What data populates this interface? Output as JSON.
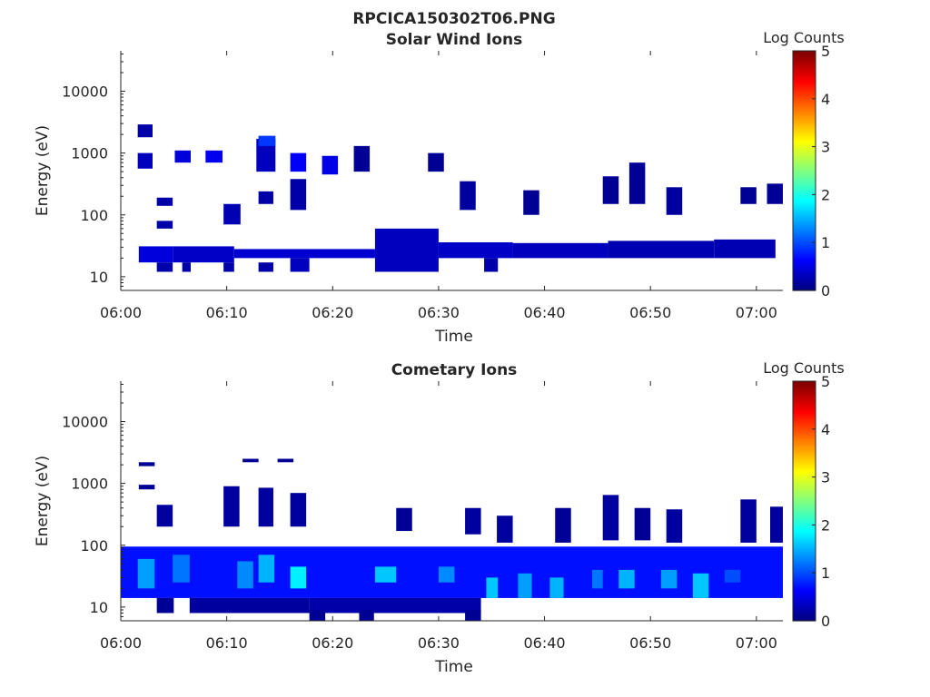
{
  "figure_title": "RPCICA150302T06.PNG",
  "colorbar": {
    "label": "Log Counts",
    "ticks": [
      "0",
      "1",
      "2",
      "3",
      "4",
      "5"
    ],
    "range": [
      0,
      5
    ],
    "colormap": "jet"
  },
  "x_axis": {
    "label": "Time",
    "ticks": [
      "06:00",
      "06:10",
      "06:20",
      "06:30",
      "06:40",
      "06:50",
      "07:00"
    ],
    "tick_minutes": [
      0,
      10,
      20,
      30,
      40,
      50,
      60
    ],
    "range_minutes": [
      0,
      62.5
    ]
  },
  "y_axis": {
    "label": "Energy (eV)",
    "ticks": [
      "10",
      "100",
      "1000",
      "10000"
    ],
    "tick_values": [
      10,
      100,
      1000,
      10000
    ],
    "scale": "log",
    "range": [
      6,
      45000
    ]
  },
  "chart_data": [
    {
      "type": "heatmap",
      "title": "Solar Wind Ions",
      "xlabel": "Time",
      "ylabel": "Energy (eV)",
      "cbar_label": "Log Counts",
      "yscale": "log",
      "xlim": [
        "06:00",
        "07:02"
      ],
      "ylim": [
        6,
        45000
      ],
      "clim": [
        0,
        5
      ],
      "cells": [
        {
          "t0": 1.7,
          "t1": 4.9,
          "e0": 17,
          "e1": 31,
          "v": 0.45
        },
        {
          "t0": 3.4,
          "t1": 4.9,
          "e0": 12,
          "e1": 17,
          "v": 0.2
        },
        {
          "t0": 4.9,
          "t1": 10.7,
          "e0": 17,
          "e1": 31,
          "v": 0.35
        },
        {
          "t0": 5.8,
          "t1": 6.6,
          "e0": 12,
          "e1": 17,
          "v": 0.2
        },
        {
          "t0": 9.7,
          "t1": 10.7,
          "e0": 12,
          "e1": 17,
          "v": 0.2
        },
        {
          "t0": 10.7,
          "t1": 24.0,
          "e0": 20,
          "e1": 28,
          "v": 0.4
        },
        {
          "t0": 13.0,
          "t1": 14.4,
          "e0": 12,
          "e1": 17,
          "v": 0.2
        },
        {
          "t0": 16.0,
          "t1": 17.8,
          "e0": 12,
          "e1": 20,
          "v": 0.3
        },
        {
          "t0": 24.0,
          "t1": 30.0,
          "e0": 12,
          "e1": 60,
          "v": 0.3
        },
        {
          "t0": 30.0,
          "t1": 37.0,
          "e0": 20,
          "e1": 36,
          "v": 0.35
        },
        {
          "t0": 34.3,
          "t1": 35.6,
          "e0": 12,
          "e1": 20,
          "v": 0.2
        },
        {
          "t0": 37.0,
          "t1": 46.0,
          "e0": 20,
          "e1": 35,
          "v": 0.3
        },
        {
          "t0": 46.0,
          "t1": 56.0,
          "e0": 20,
          "e1": 38,
          "v": 0.25
        },
        {
          "t0": 56.0,
          "t1": 61.8,
          "e0": 20,
          "e1": 40,
          "v": 0.25
        },
        {
          "t0": 3.4,
          "t1": 4.9,
          "e0": 60,
          "e1": 80,
          "v": 0.2
        },
        {
          "t0": 3.4,
          "t1": 4.9,
          "e0": 140,
          "e1": 190,
          "v": 0.2
        },
        {
          "t0": 9.7,
          "t1": 11.3,
          "e0": 70,
          "e1": 150,
          "v": 0.25
        },
        {
          "t0": 13.0,
          "t1": 14.4,
          "e0": 150,
          "e1": 240,
          "v": 0.2
        },
        {
          "t0": 12.8,
          "t1": 14.6,
          "e0": 500,
          "e1": 1700,
          "v": 0.3
        },
        {
          "t0": 13.0,
          "t1": 14.6,
          "e0": 1300,
          "e1": 1900,
          "v": 0.9
        },
        {
          "t0": 16.0,
          "t1": 17.5,
          "e0": 500,
          "e1": 1000,
          "v": 0.6
        },
        {
          "t0": 16.0,
          "t1": 17.5,
          "e0": 120,
          "e1": 380,
          "v": 0.2
        },
        {
          "t0": 19.0,
          "t1": 20.5,
          "e0": 450,
          "e1": 900,
          "v": 0.5
        },
        {
          "t0": 1.6,
          "t1": 3.0,
          "e0": 1800,
          "e1": 2900,
          "v": 0.2
        },
        {
          "t0": 1.6,
          "t1": 3.0,
          "e0": 560,
          "e1": 1000,
          "v": 0.3
        },
        {
          "t0": 5.1,
          "t1": 6.6,
          "e0": 700,
          "e1": 1100,
          "v": 0.45
        },
        {
          "t0": 8.0,
          "t1": 9.6,
          "e0": 700,
          "e1": 1100,
          "v": 0.55
        },
        {
          "t0": 22.0,
          "t1": 23.5,
          "e0": 500,
          "e1": 1300,
          "v": 0.1
        },
        {
          "t0": 29.0,
          "t1": 30.5,
          "e0": 500,
          "e1": 1000,
          "v": 0.1
        },
        {
          "t0": 32.0,
          "t1": 33.5,
          "e0": 120,
          "e1": 350,
          "v": 0.15
        },
        {
          "t0": 38.0,
          "t1": 39.5,
          "e0": 100,
          "e1": 250,
          "v": 0.1
        },
        {
          "t0": 45.5,
          "t1": 47.0,
          "e0": 150,
          "e1": 420,
          "v": 0.1
        },
        {
          "t0": 48.0,
          "t1": 49.5,
          "e0": 150,
          "e1": 700,
          "v": 0.1
        },
        {
          "t0": 51.5,
          "t1": 53.0,
          "e0": 100,
          "e1": 280,
          "v": 0.15
        },
        {
          "t0": 58.5,
          "t1": 60.0,
          "e0": 150,
          "e1": 280,
          "v": 0.1
        },
        {
          "t0": 61.0,
          "t1": 62.5,
          "e0": 150,
          "e1": 320,
          "v": 0.1
        }
      ]
    },
    {
      "type": "heatmap",
      "title": "Cometary Ions",
      "xlabel": "Time",
      "ylabel": "Energy (eV)",
      "cbar_label": "Log Counts",
      "yscale": "log",
      "xlim": [
        "06:00",
        "07:02"
      ],
      "ylim": [
        6,
        45000
      ],
      "clim": [
        0,
        5
      ],
      "cells": [
        {
          "t0": -0.8,
          "t1": 62.5,
          "e0": 14,
          "e1": 95,
          "v": 0.7
        },
        {
          "t0": 3.4,
          "t1": 5.0,
          "e0": 8,
          "e1": 14,
          "v": 0.1
        },
        {
          "t0": 6.5,
          "t1": 17.8,
          "e0": 8,
          "e1": 14,
          "v": 0.15
        },
        {
          "t0": 17.8,
          "t1": 34.0,
          "e0": 8,
          "e1": 14,
          "v": 0.2
        },
        {
          "t0": 17.8,
          "t1": 19.3,
          "e0": 6,
          "e1": 9,
          "v": 0.1
        },
        {
          "t0": 22.5,
          "t1": 23.9,
          "e0": 6,
          "e1": 9,
          "v": 0.1
        },
        {
          "t0": 32.5,
          "t1": 34.0,
          "e0": 6,
          "e1": 9,
          "v": 0.1
        },
        {
          "t0": 1.6,
          "t1": 3.2,
          "e0": 20,
          "e1": 60,
          "v": 1.4
        },
        {
          "t0": 4.9,
          "t1": 6.5,
          "e0": 25,
          "e1": 70,
          "v": 1.2
        },
        {
          "t0": 11.0,
          "t1": 12.5,
          "e0": 20,
          "e1": 55,
          "v": 1.3
        },
        {
          "t0": 13.0,
          "t1": 14.5,
          "e0": 25,
          "e1": 70,
          "v": 1.5
        },
        {
          "t0": 16.0,
          "t1": 17.5,
          "e0": 20,
          "e1": 45,
          "v": 1.8
        },
        {
          "t0": 24.0,
          "t1": 26.0,
          "e0": 25,
          "e1": 45,
          "v": 1.6
        },
        {
          "t0": 30.0,
          "t1": 31.5,
          "e0": 25,
          "e1": 45,
          "v": 1.3
        },
        {
          "t0": 34.5,
          "t1": 35.6,
          "e0": 14,
          "e1": 30,
          "v": 1.6
        },
        {
          "t0": 37.5,
          "t1": 38.8,
          "e0": 14,
          "e1": 35,
          "v": 1.4
        },
        {
          "t0": 40.5,
          "t1": 41.8,
          "e0": 14,
          "e1": 30,
          "v": 1.5
        },
        {
          "t0": 44.5,
          "t1": 45.5,
          "e0": 20,
          "e1": 40,
          "v": 1.2
        },
        {
          "t0": 47.0,
          "t1": 48.5,
          "e0": 20,
          "e1": 40,
          "v": 1.5
        },
        {
          "t0": 51.0,
          "t1": 52.5,
          "e0": 20,
          "e1": 40,
          "v": 1.4
        },
        {
          "t0": 54.0,
          "t1": 55.5,
          "e0": 14,
          "e1": 35,
          "v": 1.6
        },
        {
          "t0": 57.0,
          "t1": 58.5,
          "e0": 25,
          "e1": 40,
          "v": 1.0
        },
        {
          "t0": 1.7,
          "t1": 3.2,
          "e0": 1900,
          "e1": 2200,
          "v": 0.1
        },
        {
          "t0": 1.7,
          "t1": 3.2,
          "e0": 800,
          "e1": 950,
          "v": 0.1
        },
        {
          "t0": 3.4,
          "t1": 4.9,
          "e0": 200,
          "e1": 450,
          "v": 0.15
        },
        {
          "t0": 9.7,
          "t1": 11.2,
          "e0": 200,
          "e1": 900,
          "v": 0.15
        },
        {
          "t0": 13.0,
          "t1": 14.4,
          "e0": 200,
          "e1": 850,
          "v": 0.15
        },
        {
          "t0": 16.0,
          "t1": 17.5,
          "e0": 200,
          "e1": 700,
          "v": 0.15
        },
        {
          "t0": 11.5,
          "t1": 13.0,
          "e0": 2200,
          "e1": 2500,
          "v": 0.1
        },
        {
          "t0": 14.8,
          "t1": 16.3,
          "e0": 2200,
          "e1": 2500,
          "v": 0.1
        },
        {
          "t0": 26.0,
          "t1": 27.5,
          "e0": 170,
          "e1": 400,
          "v": 0.1
        },
        {
          "t0": 32.5,
          "t1": 34.0,
          "e0": 150,
          "e1": 400,
          "v": 0.15
        },
        {
          "t0": 35.5,
          "t1": 37.0,
          "e0": 110,
          "e1": 300,
          "v": 0.15
        },
        {
          "t0": 41.0,
          "t1": 42.5,
          "e0": 110,
          "e1": 400,
          "v": 0.1
        },
        {
          "t0": 45.5,
          "t1": 47.0,
          "e0": 120,
          "e1": 650,
          "v": 0.15
        },
        {
          "t0": 48.5,
          "t1": 50.0,
          "e0": 120,
          "e1": 400,
          "v": 0.1
        },
        {
          "t0": 51.5,
          "t1": 53.0,
          "e0": 110,
          "e1": 380,
          "v": 0.15
        },
        {
          "t0": 58.5,
          "t1": 60.0,
          "e0": 110,
          "e1": 550,
          "v": 0.15
        },
        {
          "t0": 61.3,
          "t1": 62.5,
          "e0": 110,
          "e1": 420,
          "v": 0.15
        }
      ]
    }
  ]
}
